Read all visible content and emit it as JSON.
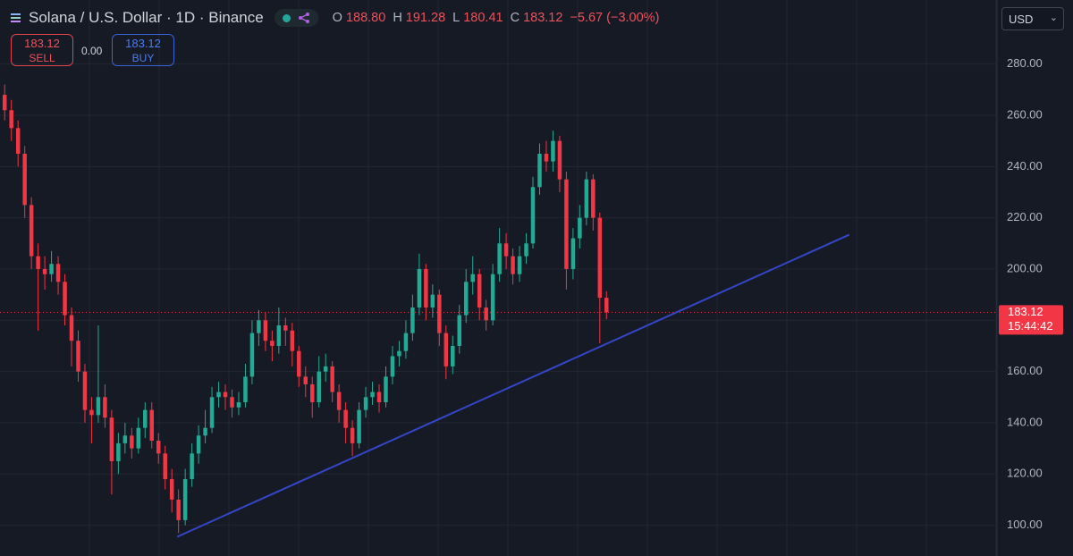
{
  "header": {
    "symbol": "Solana / U.S. Dollar · 1D · Binance",
    "open_key": "O",
    "open": "188.80",
    "high_key": "H",
    "high": "191.28",
    "low_key": "L",
    "low": "180.41",
    "close_key": "C",
    "close": "183.12",
    "change": "−5.67 (−3.00%)"
  },
  "trade": {
    "sell_price": "183.12",
    "sell": "SELL",
    "spread": "0.00",
    "buy_price": "183.12",
    "buy": "BUY"
  },
  "currency": "USD",
  "chart_data": {
    "type": "candlestick",
    "up_color": "#22ab94",
    "down_color": "#f23645",
    "open": [
      268,
      262,
      255,
      245,
      225,
      205,
      200,
      198,
      202,
      195,
      182,
      172,
      160,
      145,
      143,
      150,
      142,
      125,
      132,
      135,
      130,
      138,
      145,
      133,
      128,
      118,
      110,
      102,
      118,
      128,
      135,
      138,
      150,
      152,
      150,
      146,
      148,
      158,
      175,
      180,
      172,
      170,
      178,
      176,
      168,
      158,
      155,
      148,
      160,
      162,
      152,
      145,
      138,
      132,
      145,
      150,
      152,
      148,
      158,
      166,
      168,
      175,
      185,
      200,
      185,
      190,
      175,
      162,
      170,
      182,
      195,
      198,
      185,
      180,
      198,
      210,
      205,
      198,
      205,
      210,
      232,
      245,
      242,
      250,
      235,
      200,
      212,
      220,
      235,
      220,
      188.8
    ],
    "high": [
      272,
      266,
      258,
      248,
      228,
      210,
      205,
      207,
      205,
      198,
      185,
      176,
      163,
      150,
      178,
      155,
      145,
      136,
      140,
      138,
      142,
      148,
      148,
      136,
      131,
      122,
      114,
      122,
      132,
      139,
      145,
      154,
      156,
      155,
      153,
      152,
      163,
      180,
      184,
      183,
      176,
      185,
      181,
      179,
      170,
      162,
      158,
      166,
      167,
      164,
      155,
      148,
      141,
      148,
      154,
      156,
      155,
      162,
      170,
      172,
      180,
      190,
      206,
      202,
      194,
      192,
      178,
      174,
      186,
      200,
      205,
      200,
      188,
      202,
      216,
      214,
      208,
      209,
      214,
      236,
      249,
      250,
      254,
      252,
      238,
      216,
      225,
      238,
      237,
      222,
      191.28
    ],
    "low": [
      258,
      250,
      240,
      220,
      200,
      176,
      192,
      195,
      190,
      178,
      162,
      156,
      140,
      132,
      140,
      138,
      112,
      120,
      128,
      126,
      128,
      134,
      130,
      124,
      114,
      105,
      97,
      100,
      115,
      124,
      132,
      136,
      146,
      145,
      142,
      143,
      146,
      155,
      170,
      168,
      164,
      167,
      170,
      162,
      154,
      150,
      142,
      146,
      156,
      148,
      140,
      132,
      127,
      130,
      142,
      147,
      144,
      146,
      155,
      162,
      165,
      172,
      182,
      180,
      181,
      170,
      157,
      159,
      167,
      179,
      190,
      180,
      176,
      178,
      195,
      200,
      194,
      195,
      202,
      208,
      229,
      238,
      238,
      230,
      192,
      196,
      208,
      217,
      215,
      171,
      180.41
    ],
    "close": [
      262,
      255,
      245,
      225,
      205,
      200,
      198,
      202,
      195,
      182,
      172,
      160,
      145,
      143,
      150,
      142,
      125,
      132,
      135,
      130,
      138,
      145,
      133,
      128,
      118,
      110,
      102,
      118,
      128,
      135,
      138,
      150,
      152,
      150,
      146,
      148,
      158,
      175,
      180,
      172,
      170,
      178,
      176,
      168,
      158,
      155,
      148,
      160,
      162,
      152,
      145,
      138,
      132,
      145,
      150,
      152,
      148,
      158,
      166,
      168,
      175,
      185,
      200,
      185,
      190,
      175,
      162,
      170,
      182,
      195,
      198,
      185,
      180,
      198,
      210,
      205,
      198,
      205,
      210,
      232,
      245,
      242,
      250,
      235,
      200,
      212,
      220,
      235,
      220,
      188.8,
      183.12
    ],
    "xlim": [
      -0.7,
      148.4
    ],
    "ylim": [
      88,
      305
    ],
    "yticks": [
      {
        "value": 100,
        "label": "100.00"
      },
      {
        "value": 120,
        "label": "120.00"
      },
      {
        "value": 140,
        "label": "140.00"
      },
      {
        "value": 160,
        "label": "160.00"
      },
      {
        "value": 180,
        "label": "180.00"
      },
      {
        "value": 200,
        "label": "200.00"
      },
      {
        "value": 220,
        "label": "220.00"
      },
      {
        "value": 240,
        "label": "240.00"
      },
      {
        "value": 260,
        "label": "260.00"
      },
      {
        "value": 280,
        "label": "280.00"
      }
    ],
    "grid": true,
    "trendline": {
      "x": [
        25.8,
        126.3
      ],
      "y": [
        95.5,
        213.4
      ],
      "color": "#3446c8"
    },
    "last_price": {
      "value": 183.12,
      "label": "183.12",
      "countdown": "15:44:42",
      "color": "#f23645"
    }
  }
}
